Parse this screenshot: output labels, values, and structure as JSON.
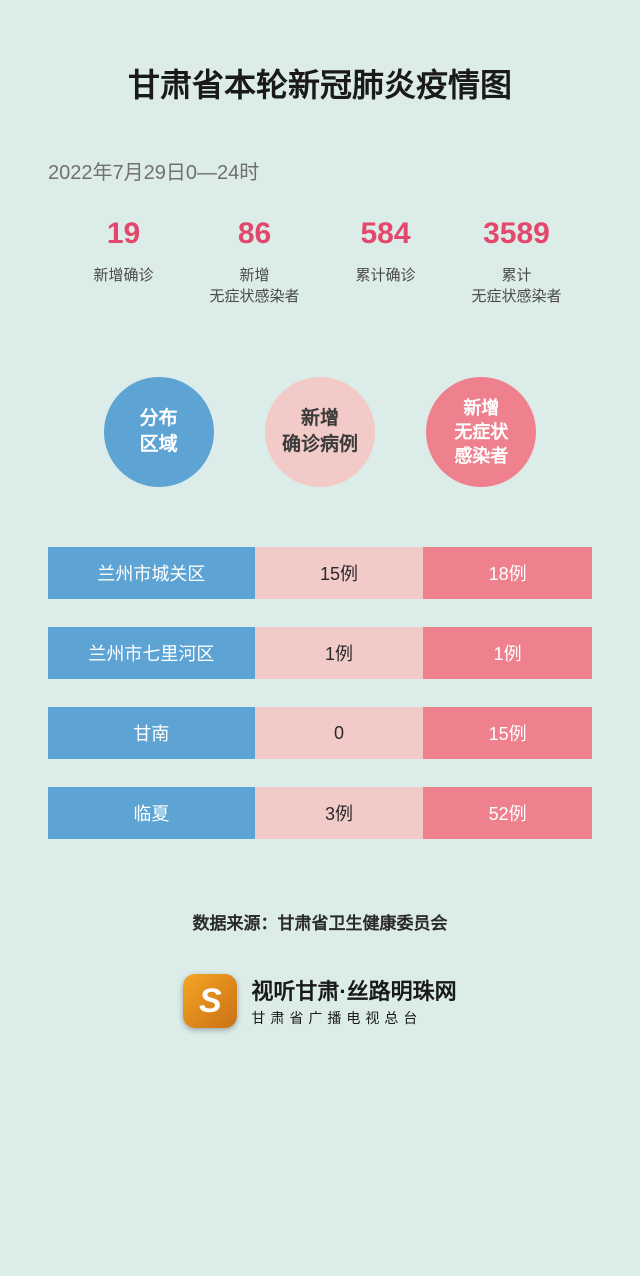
{
  "title": "甘肃省本轮新冠肺炎疫情图",
  "datetime": "2022年7月29日0—24时",
  "colors": {
    "background": "#dcece8",
    "blue": "#5da4d4",
    "lightpink": "#f2cbc9",
    "pink": "#ee818d",
    "statvalue": "#e3476c",
    "text_dark": "#1a1a1a",
    "text_grey": "#707070"
  },
  "stats": [
    {
      "value": "19",
      "label": "新增确诊"
    },
    {
      "value": "86",
      "label": "新增\n无症状感染者"
    },
    {
      "value": "584",
      "label": "累计确诊"
    },
    {
      "value": "3589",
      "label": "累计\n无症状感染者"
    }
  ],
  "circles": [
    {
      "label": "分布\n区域",
      "style": "blue"
    },
    {
      "label": "新增\n确诊病例",
      "style": "lightpink"
    },
    {
      "label": "新增\n无症状\n感染者",
      "style": "pink"
    }
  ],
  "rows": [
    {
      "region": "兰州市城关区",
      "confirmed": "15例",
      "asymptomatic": "18例"
    },
    {
      "region": "兰州市七里河区",
      "confirmed": "1例",
      "asymptomatic": "1例"
    },
    {
      "region": "甘南",
      "confirmed": "0",
      "asymptomatic": "15例"
    },
    {
      "region": "临夏",
      "confirmed": "3例",
      "asymptomatic": "52例"
    }
  ],
  "source_label": "数据来源：",
  "source_value": "甘肃省卫生健康委员会",
  "footer": {
    "logo_glyph": "S",
    "main": "视听甘肃·丝路明珠网",
    "sub": "甘肃省广播电视总台"
  }
}
